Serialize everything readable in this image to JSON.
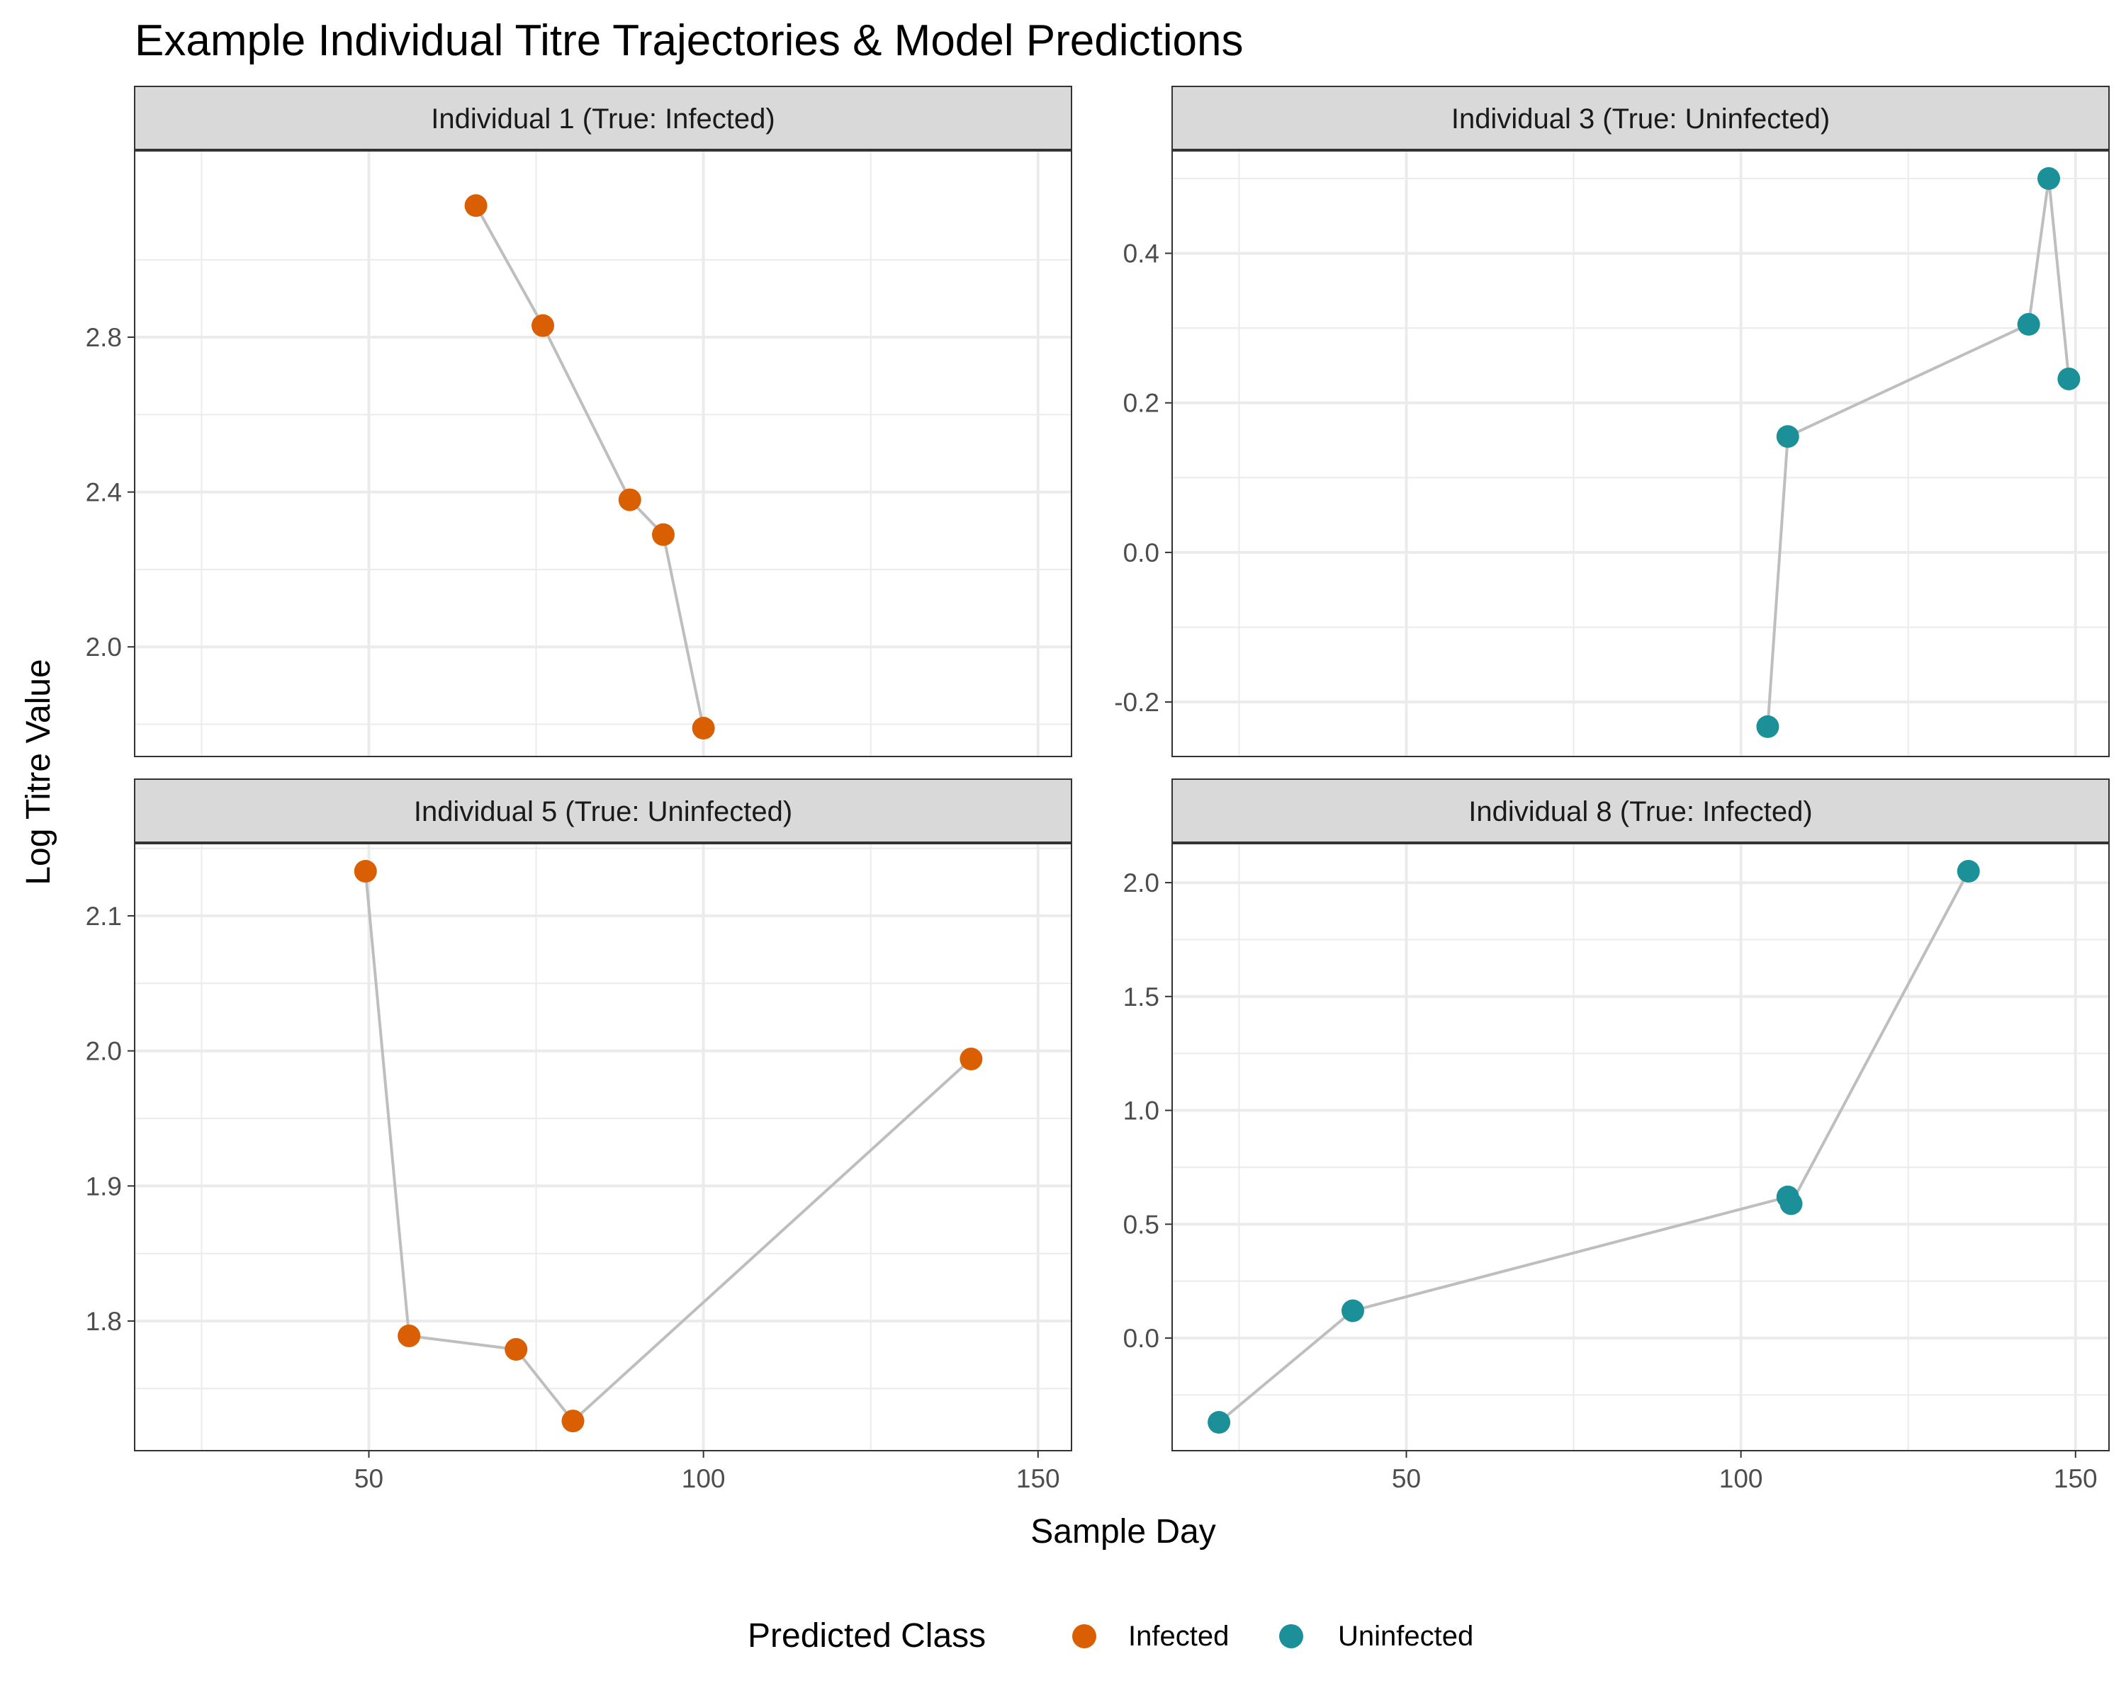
{
  "title": "Example Individual Titre Trajectories & Model Predictions",
  "legend": {
    "title": "Predicted Class",
    "items": [
      {
        "label": "Infected",
        "color": "#D95F02"
      },
      {
        "label": "Uninfected",
        "color": "#1B9099"
      }
    ]
  },
  "colors": {
    "line": "#BEBEBE",
    "grid": "#EBEBEB",
    "strip_bg": "#D9D9D9",
    "border": "#333333"
  },
  "chart_data": {
    "type": "scatter",
    "xlabel": "Sample Day",
    "ylabel": "Log Titre Value",
    "xlim": [
      15,
      155
    ],
    "x_ticks": [
      50,
      100,
      150
    ],
    "panels": [
      {
        "label": "Individual 1 (True: Infected)",
        "ylim": [
          1.79,
          3.21
        ],
        "y_ticks": [
          2.0,
          2.4,
          2.8
        ],
        "y_tick_labels": [
          "2.0",
          "2.4",
          "2.8"
        ],
        "points": [
          {
            "x": 66,
            "y": 3.14,
            "class": "Infected"
          },
          {
            "x": 76,
            "y": 2.83,
            "class": "Infected"
          },
          {
            "x": 89,
            "y": 2.38,
            "class": "Infected"
          },
          {
            "x": 94,
            "y": 2.29,
            "class": "Infected"
          },
          {
            "x": 100,
            "y": 1.79,
            "class": "Infected"
          }
        ]
      },
      {
        "label": "Individual 3 (True: Uninfected)",
        "ylim": [
          -0.235,
          0.5
        ],
        "y_ticks": [
          -0.2,
          0.0,
          0.2,
          0.4
        ],
        "y_tick_labels": [
          "-0.2",
          "0.0",
          "0.2",
          "0.4"
        ],
        "points": [
          {
            "x": 104,
            "y": -0.233,
            "class": "Uninfected"
          },
          {
            "x": 107,
            "y": 0.155,
            "class": "Uninfected"
          },
          {
            "x": 143,
            "y": 0.305,
            "class": "Uninfected"
          },
          {
            "x": 146,
            "y": 0.5,
            "class": "Uninfected"
          },
          {
            "x": 149,
            "y": 0.232,
            "class": "Uninfected"
          }
        ]
      },
      {
        "label": "Individual 5 (True: Uninfected)",
        "ylim": [
          1.725,
          2.133
        ],
        "y_ticks": [
          1.8,
          1.9,
          2.0,
          2.1
        ],
        "y_tick_labels": [
          "1.8",
          "1.9",
          "2.0",
          "2.1"
        ],
        "points": [
          {
            "x": 49.5,
            "y": 2.133,
            "class": "Infected"
          },
          {
            "x": 56,
            "y": 1.789,
            "class": "Infected"
          },
          {
            "x": 72,
            "y": 1.779,
            "class": "Infected"
          },
          {
            "x": 80.5,
            "y": 1.726,
            "class": "Infected"
          },
          {
            "x": 140,
            "y": 1.994,
            "class": "Infected"
          }
        ]
      },
      {
        "label": "Individual 8 (True: Infected)",
        "ylim": [
          -0.37,
          2.05
        ],
        "y_ticks": [
          0.0,
          0.5,
          1.0,
          1.5,
          2.0
        ],
        "y_tick_labels": [
          "0.0",
          "0.5",
          "1.0",
          "1.5",
          "2.0"
        ],
        "points": [
          {
            "x": 22,
            "y": -0.37,
            "class": "Uninfected"
          },
          {
            "x": 42,
            "y": 0.12,
            "class": "Uninfected"
          },
          {
            "x": 107,
            "y": 0.62,
            "class": "Uninfected"
          },
          {
            "x": 107.5,
            "y": 0.59,
            "class": "Uninfected"
          },
          {
            "x": 134,
            "y": 2.05,
            "class": "Uninfected"
          }
        ]
      }
    ]
  }
}
